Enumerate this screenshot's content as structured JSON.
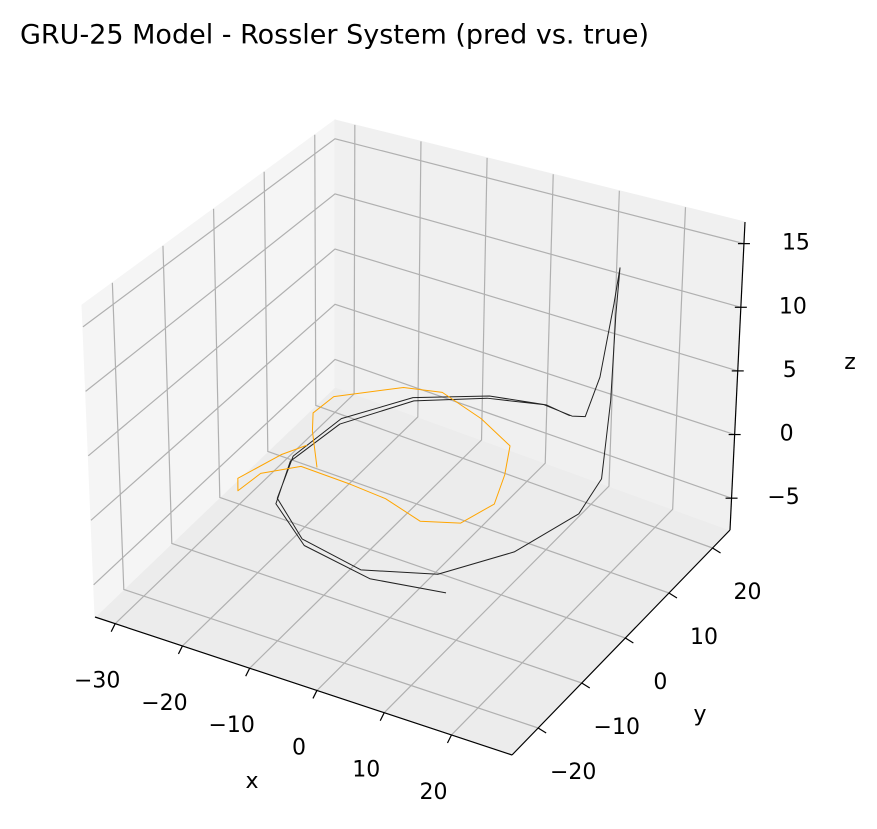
{
  "chart_data": {
    "type": "line3d",
    "title": "GRU-25 Model - Rossler System (pred vs. true)",
    "xlabel": "x",
    "ylabel": "y",
    "zlabel": "z",
    "xlim": [
      -33,
      29
    ],
    "ylim": [
      -26,
      24
    ],
    "zlim": [
      -7.5,
      16.7
    ],
    "xticks": [
      {
        "value": -30,
        "label": "−30"
      },
      {
        "value": -20,
        "label": "−20"
      },
      {
        "value": -10,
        "label": "−10"
      },
      0,
      10,
      20
    ],
    "yticks": [
      {
        "value": -20,
        "label": "−20"
      },
      {
        "value": -10,
        "label": "−10"
      },
      0,
      10,
      20
    ],
    "zticks": [
      {
        "value": -5,
        "label": "−5"
      },
      0,
      5,
      10,
      15
    ],
    "grid": true,
    "series": [
      {
        "color": "#222222",
        "x": [
          14,
          4,
          -7,
          -15,
          -18.5,
          -17.5,
          -12,
          -4,
          4,
          10,
          13,
          15,
          16.5,
          17.2,
          18,
          19,
          20,
          20,
          17,
          11,
          2,
          -8,
          -15.5,
          -18.8,
          -18,
          -12.5,
          -4,
          4,
          9
        ],
        "y": [
          -18.7,
          -20.5,
          -18.5,
          -13,
          -5,
          4,
          12,
          16.5,
          17.5,
          15,
          13.5,
          13.5,
          13.8,
          13.8,
          12,
          10,
          7,
          2,
          -8,
          -16,
          -19.5,
          -17.5,
          -12,
          -4,
          5,
          12.5,
          17,
          18,
          16
        ],
        "z": [
          0,
          0,
          0,
          0,
          0,
          0,
          0,
          0,
          0.5,
          1.5,
          2.5,
          6,
          12,
          15,
          12,
          6,
          1,
          0,
          0,
          0,
          0,
          0,
          0,
          0,
          0,
          0,
          0,
          0.3,
          1
        ]
      },
      {
        "color": "#ffa500",
        "x": [
          -14.8,
          -19.7,
          -21.4,
          -20.8,
          -14.1,
          -9.1,
          -1.8,
          4.3,
          7.1,
          9.3,
          7.7,
          3,
          -3.5,
          -9.1,
          -16.7,
          -20.3,
          -20.7,
          -22.2,
          -20.3,
          -18.6
        ],
        "y": [
          -4.6,
          1.3,
          3.8,
          7.3,
          12.7,
          14,
          12.1,
          9.7,
          4.5,
          -1,
          -6.1,
          -8,
          -6.1,
          -5.6,
          -5.3,
          -8.7,
          -12.9,
          -10.8,
          -4.4,
          -1.4
        ],
        "z": [
          0,
          0,
          0.3,
          0.5,
          0.5,
          0.5,
          0.3,
          0,
          0,
          0,
          0,
          0,
          0,
          0,
          0,
          0,
          0,
          0,
          0,
          0
        ]
      }
    ]
  }
}
